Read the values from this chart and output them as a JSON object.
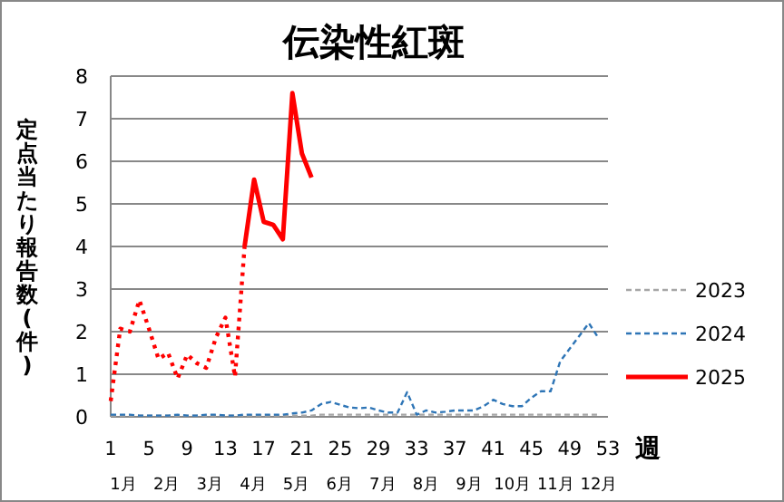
{
  "chart_data": {
    "type": "line",
    "title": "伝染性紅斑",
    "xlabel": "週",
    "ylabel": "定点当たり報告数(件)",
    "xlim": [
      1,
      53
    ],
    "xticks": [
      1,
      5,
      9,
      13,
      17,
      21,
      25,
      29,
      33,
      37,
      41,
      45,
      49,
      53
    ],
    "ylim": [
      0,
      8
    ],
    "yticks": [
      0,
      1,
      2,
      3,
      4,
      5,
      6,
      7,
      8
    ],
    "grid": "y",
    "legend": "right",
    "marker": "none",
    "annotations": [
      "1月",
      "2月",
      "3月",
      "4月",
      "5月",
      "6月",
      "7月",
      "8月",
      "9月",
      "10月",
      "11月",
      "12月"
    ],
    "series": [
      {
        "name": "2023",
        "color": "#a6a6a6",
        "line_style": "dashed",
        "x": [
          1,
          2,
          3,
          4,
          5,
          6,
          7,
          8,
          9,
          10,
          11,
          12,
          13,
          14,
          15,
          16,
          17,
          18,
          19,
          20,
          21,
          22,
          23,
          24,
          25,
          26,
          27,
          28,
          29,
          30,
          31,
          32,
          33,
          34,
          35,
          36,
          37,
          38,
          39,
          40,
          41,
          42,
          43,
          44,
          45,
          46,
          47,
          48,
          49,
          50,
          51,
          52
        ],
        "values": [
          0.03,
          0.03,
          0.03,
          0.03,
          0.03,
          0.03,
          0.03,
          0.03,
          0.03,
          0.03,
          0.03,
          0.03,
          0.03,
          0.03,
          0.03,
          0.03,
          0.03,
          0.03,
          0.03,
          0.03,
          0.03,
          0.03,
          0.05,
          0.05,
          0.05,
          0.05,
          0.05,
          0.05,
          0.05,
          0.05,
          0.05,
          0.05,
          0.05,
          0.05,
          0.05,
          0.05,
          0.05,
          0.05,
          0.05,
          0.05,
          0.05,
          0.05,
          0.05,
          0.05,
          0.05,
          0.05,
          0.05,
          0.05,
          0.05,
          0.05,
          0.05,
          0.05
        ]
      },
      {
        "name": "2024",
        "color": "#2e75b6",
        "line_style": "dashed",
        "x": [
          1,
          2,
          3,
          4,
          5,
          6,
          7,
          8,
          9,
          10,
          11,
          12,
          13,
          14,
          15,
          16,
          17,
          18,
          19,
          20,
          21,
          22,
          23,
          24,
          25,
          26,
          27,
          28,
          29,
          30,
          31,
          32,
          33,
          34,
          35,
          36,
          37,
          38,
          39,
          40,
          41,
          42,
          43,
          44,
          45,
          46,
          47,
          48,
          49,
          50,
          51,
          52
        ],
        "values": [
          0.05,
          0.05,
          0.05,
          0.03,
          0.03,
          0.03,
          0.03,
          0.05,
          0.03,
          0.03,
          0.05,
          0.05,
          0.03,
          0.03,
          0.05,
          0.05,
          0.05,
          0.05,
          0.05,
          0.08,
          0.1,
          0.15,
          0.3,
          0.35,
          0.28,
          0.22,
          0.2,
          0.22,
          0.15,
          0.1,
          0.1,
          0.58,
          0.05,
          0.15,
          0.1,
          0.12,
          0.15,
          0.15,
          0.15,
          0.25,
          0.4,
          0.3,
          0.25,
          0.25,
          0.45,
          0.6,
          0.6,
          1.3,
          1.6,
          1.9,
          2.2,
          1.85
        ]
      },
      {
        "color": "#ff0000",
        "line_style": "dotted",
        "x": [
          1,
          2,
          3,
          4,
          5,
          6,
          7,
          8,
          9,
          10,
          11,
          12,
          13,
          14,
          15
        ],
        "values": [
          0.37,
          2.07,
          2.0,
          2.74,
          2.07,
          1.36,
          1.5,
          0.9,
          1.46,
          1.26,
          1.15,
          1.86,
          2.33,
          0.94,
          4.0
        ]
      },
      {
        "name": "2025",
        "color": "#ff0000",
        "line_style": "solid",
        "x": [
          15,
          16,
          17,
          18,
          19,
          20,
          21,
          22
        ],
        "values": [
          4.0,
          5.57,
          4.58,
          4.51,
          4.17,
          7.6,
          6.18,
          5.62
        ]
      }
    ]
  }
}
